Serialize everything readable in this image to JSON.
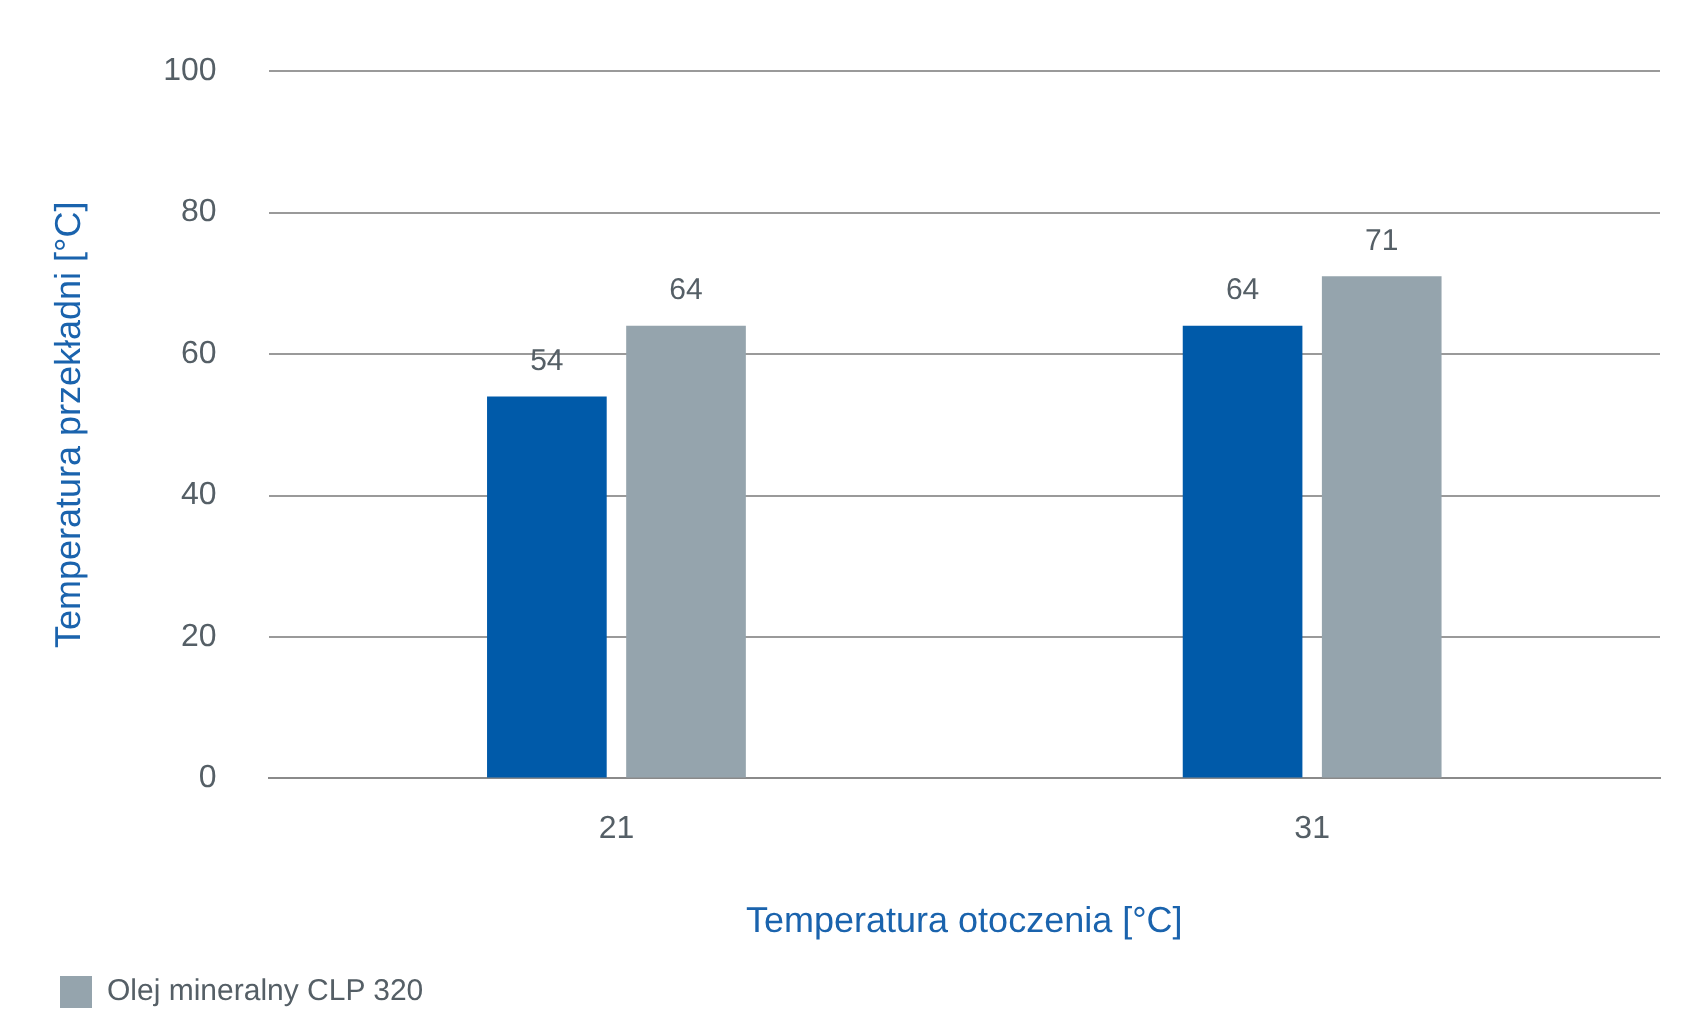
{
  "chart_data": {
    "type": "bar",
    "xlabel": "Temperatura otoczenia [°C]",
    "ylabel": "Temperatura przekładni [°C]",
    "categories": [
      "21",
      "31"
    ],
    "series": [
      {
        "color": "#005aa9",
        "values": [
          54,
          64
        ]
      },
      {
        "name": "Olej mineralny CLP 320",
        "color": "#95a4ad",
        "values": [
          64,
          71
        ]
      }
    ],
    "ylim": [
      0,
      100
    ],
    "yticks": [
      0,
      20,
      40,
      60,
      80,
      100
    ],
    "grid": "y",
    "legend": "bottom left",
    "data_labels": true
  }
}
